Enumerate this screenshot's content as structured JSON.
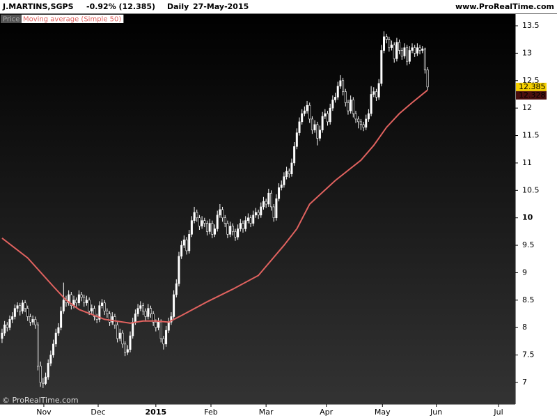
{
  "chart_data": {
    "type": "candlestick",
    "title": "J.MARTINS,SGPS",
    "change": "-0.92% (12.385)",
    "period": "Daily",
    "date": "27-May-2015",
    "source": "www.ProRealTime.com",
    "copyright": "© ProRealTime.com",
    "price_name": "Price",
    "up_color": "#ffffff",
    "down_color": "#000000",
    "wick_color": "#ffffff",
    "last_price_color": "#f5d000",
    "ylim": [
      6.606,
      13.716
    ],
    "yticks": [
      7,
      7.5,
      8,
      8.5,
      9,
      9.5,
      10,
      10.5,
      11,
      11.5,
      12,
      12.5,
      13,
      13.5
    ],
    "major_ytick": 10,
    "xlim": [
      -0.8,
      200.2
    ],
    "xticks": [
      {
        "value": 16.3,
        "label": "Nov"
      },
      {
        "value": 37.5,
        "label": "Dec"
      },
      {
        "value": 60,
        "label": "2015"
      },
      {
        "value": 81.5,
        "label": "Feb"
      },
      {
        "value": 103,
        "label": "Mar"
      },
      {
        "value": 126.5,
        "label": "Apr"
      },
      {
        "value": 148.4,
        "label": "May"
      },
      {
        "value": 169.4,
        "label": "Jun"
      },
      {
        "value": 193.7,
        "label": "Jul"
      }
    ],
    "major_xtick": "2015",
    "moving_average": {
      "name": "Moving average (Simple 50)",
      "color": "#e0625f",
      "x": [
        0,
        10,
        20,
        25,
        30,
        40,
        50,
        55,
        60,
        65,
        70,
        80,
        90,
        100,
        110,
        115,
        120,
        130,
        140,
        145,
        150,
        155,
        160,
        166
      ],
      "values": [
        9.63,
        9.27,
        8.75,
        8.5,
        8.33,
        8.15,
        8.08,
        8.12,
        8.12,
        8.1,
        8.22,
        8.47,
        8.7,
        8.95,
        9.5,
        9.8,
        10.25,
        10.68,
        11.05,
        11.32,
        11.65,
        11.9,
        12.1,
        12.328
      ]
    },
    "ohlc": [
      [
        7.8,
        7.98,
        7.72,
        7.9
      ],
      [
        7.9,
        8.12,
        7.85,
        8.05
      ],
      [
        8.05,
        8.1,
        7.93,
        8.0
      ],
      [
        8.0,
        8.22,
        7.95,
        8.15
      ],
      [
        8.15,
        8.28,
        8.08,
        8.2
      ],
      [
        8.2,
        8.42,
        8.15,
        8.35
      ],
      [
        8.35,
        8.46,
        8.28,
        8.4
      ],
      [
        8.4,
        8.45,
        8.22,
        8.3
      ],
      [
        8.3,
        8.5,
        8.25,
        8.45
      ],
      [
        8.45,
        8.5,
        8.28,
        8.35
      ],
      [
        8.35,
        8.4,
        8.12,
        8.2
      ],
      [
        8.2,
        8.25,
        8.03,
        8.1
      ],
      [
        8.1,
        8.22,
        8.05,
        8.15
      ],
      [
        8.15,
        8.2,
        7.98,
        8.05
      ],
      [
        8.05,
        8.1,
        7.22,
        7.3
      ],
      [
        7.3,
        7.38,
        6.92,
        7.0
      ],
      [
        7.0,
        7.08,
        6.9,
        6.98
      ],
      [
        6.98,
        7.18,
        6.95,
        7.1
      ],
      [
        7.1,
        7.42,
        7.05,
        7.35
      ],
      [
        7.35,
        7.58,
        7.3,
        7.5
      ],
      [
        7.5,
        7.78,
        7.45,
        7.7
      ],
      [
        7.7,
        7.98,
        7.65,
        7.9
      ],
      [
        7.9,
        8.08,
        7.85,
        8.0
      ],
      [
        8.0,
        8.38,
        7.95,
        8.3
      ],
      [
        8.3,
        8.82,
        8.25,
        8.5
      ],
      [
        8.5,
        8.58,
        8.38,
        8.45
      ],
      [
        8.45,
        8.68,
        8.4,
        8.6
      ],
      [
        8.6,
        8.65,
        8.33,
        8.4
      ],
      [
        8.4,
        8.58,
        8.35,
        8.5
      ],
      [
        8.5,
        8.55,
        8.38,
        8.45
      ],
      [
        8.45,
        8.68,
        8.4,
        8.6
      ],
      [
        8.6,
        8.65,
        8.48,
        8.55
      ],
      [
        8.55,
        8.6,
        8.38,
        8.45
      ],
      [
        8.45,
        8.58,
        8.4,
        8.5
      ],
      [
        8.5,
        8.55,
        8.23,
        8.3
      ],
      [
        8.3,
        8.42,
        8.25,
        8.35
      ],
      [
        8.35,
        8.4,
        8.13,
        8.2
      ],
      [
        8.2,
        8.25,
        8.08,
        8.15
      ],
      [
        8.15,
        8.48,
        8.1,
        8.4
      ],
      [
        8.4,
        8.52,
        8.35,
        8.45
      ],
      [
        8.45,
        8.5,
        8.23,
        8.3
      ],
      [
        8.3,
        8.35,
        8.18,
        8.25
      ],
      [
        8.25,
        8.3,
        8.03,
        8.1
      ],
      [
        8.1,
        8.28,
        8.05,
        8.2
      ],
      [
        8.2,
        8.25,
        7.98,
        8.05
      ],
      [
        8.05,
        8.1,
        7.73,
        7.8
      ],
      [
        7.8,
        7.98,
        7.75,
        7.9
      ],
      [
        7.9,
        7.95,
        7.63,
        7.7
      ],
      [
        7.7,
        7.75,
        7.48,
        7.55
      ],
      [
        7.55,
        7.68,
        7.5,
        7.6
      ],
      [
        7.6,
        7.93,
        7.55,
        7.85
      ],
      [
        7.85,
        8.18,
        7.8,
        8.1
      ],
      [
        8.1,
        8.33,
        8.05,
        8.25
      ],
      [
        8.25,
        8.43,
        8.2,
        8.35
      ],
      [
        8.35,
        8.48,
        8.3,
        8.4
      ],
      [
        8.4,
        8.45,
        8.23,
        8.3
      ],
      [
        8.3,
        8.35,
        8.13,
        8.2
      ],
      [
        8.2,
        8.43,
        8.15,
        8.35
      ],
      [
        8.35,
        8.4,
        8.18,
        8.25
      ],
      [
        8.25,
        8.3,
        8.03,
        8.1
      ],
      [
        8.1,
        8.15,
        7.93,
        8.0
      ],
      [
        8.0,
        8.18,
        7.95,
        8.1
      ],
      [
        8.1,
        8.15,
        7.73,
        7.8
      ],
      [
        7.8,
        7.85,
        7.6,
        7.7
      ],
      [
        7.7,
        8.03,
        7.65,
        7.95
      ],
      [
        7.95,
        8.18,
        7.9,
        8.1
      ],
      [
        8.1,
        8.28,
        8.05,
        8.2
      ],
      [
        8.2,
        8.68,
        8.15,
        8.6
      ],
      [
        8.6,
        8.88,
        8.55,
        8.8
      ],
      [
        8.8,
        9.38,
        8.75,
        9.3
      ],
      [
        9.3,
        9.58,
        9.25,
        9.5
      ],
      [
        9.5,
        9.68,
        9.45,
        9.6
      ],
      [
        9.6,
        9.65,
        9.33,
        9.4
      ],
      [
        9.4,
        9.78,
        9.35,
        9.7
      ],
      [
        9.7,
        10.03,
        9.65,
        9.95
      ],
      [
        9.95,
        10.2,
        9.9,
        10.1
      ],
      [
        10.1,
        10.15,
        9.93,
        10.0
      ],
      [
        10.0,
        10.05,
        9.78,
        9.85
      ],
      [
        9.85,
        10.03,
        9.8,
        9.95
      ],
      [
        9.95,
        10.0,
        9.83,
        9.9
      ],
      [
        9.9,
        9.95,
        9.68,
        9.75
      ],
      [
        9.75,
        9.98,
        9.7,
        9.9
      ],
      [
        9.9,
        9.95,
        9.63,
        9.7
      ],
      [
        9.7,
        9.88,
        9.65,
        9.8
      ],
      [
        9.8,
        10.13,
        9.75,
        10.05
      ],
      [
        10.05,
        10.25,
        10.0,
        10.15
      ],
      [
        10.15,
        10.2,
        9.93,
        10.0
      ],
      [
        10.0,
        10.05,
        9.83,
        9.9
      ],
      [
        9.9,
        9.95,
        9.63,
        9.7
      ],
      [
        9.7,
        9.93,
        9.65,
        9.85
      ],
      [
        9.85,
        9.9,
        9.68,
        9.75
      ],
      [
        9.75,
        9.8,
        9.58,
        9.65
      ],
      [
        9.65,
        9.88,
        9.6,
        9.8
      ],
      [
        9.8,
        9.98,
        9.75,
        9.9
      ],
      [
        9.9,
        9.95,
        9.73,
        9.8
      ],
      [
        9.8,
        10.03,
        9.75,
        9.95
      ],
      [
        9.95,
        10.08,
        9.9,
        10.0
      ],
      [
        10.0,
        10.05,
        9.83,
        9.9
      ],
      [
        9.9,
        10.13,
        9.85,
        10.05
      ],
      [
        10.05,
        10.18,
        10.0,
        10.1
      ],
      [
        10.1,
        10.15,
        9.98,
        10.05
      ],
      [
        10.05,
        10.28,
        10.0,
        10.2
      ],
      [
        10.2,
        10.38,
        10.15,
        10.3
      ],
      [
        10.3,
        10.35,
        10.18,
        10.25
      ],
      [
        10.25,
        10.53,
        10.2,
        10.45
      ],
      [
        10.45,
        10.5,
        10.13,
        10.2
      ],
      [
        10.2,
        10.25,
        9.93,
        10.0
      ],
      [
        10.0,
        10.43,
        9.95,
        10.35
      ],
      [
        10.35,
        10.63,
        10.3,
        10.55
      ],
      [
        10.55,
        10.68,
        10.5,
        10.6
      ],
      [
        10.6,
        10.83,
        10.55,
        10.75
      ],
      [
        10.75,
        10.93,
        10.7,
        10.85
      ],
      [
        10.85,
        10.9,
        10.73,
        10.8
      ],
      [
        10.8,
        11.08,
        10.75,
        11.0
      ],
      [
        11.0,
        11.38,
        10.95,
        11.3
      ],
      [
        11.3,
        11.63,
        11.25,
        11.55
      ],
      [
        11.55,
        11.83,
        11.5,
        11.75
      ],
      [
        11.75,
        11.98,
        11.7,
        11.9
      ],
      [
        11.9,
        12.03,
        11.85,
        11.95
      ],
      [
        11.95,
        12.13,
        11.9,
        12.05
      ],
      [
        12.05,
        12.1,
        11.73,
        11.8
      ],
      [
        11.8,
        11.85,
        11.53,
        11.6
      ],
      [
        11.6,
        11.78,
        11.55,
        11.7
      ],
      [
        11.7,
        11.75,
        11.32,
        11.45
      ],
      [
        11.45,
        11.68,
        11.4,
        11.6
      ],
      [
        11.6,
        11.93,
        11.55,
        11.85
      ],
      [
        11.85,
        11.98,
        11.8,
        11.9
      ],
      [
        11.9,
        11.95,
        11.68,
        11.75
      ],
      [
        11.75,
        12.08,
        11.7,
        12.0
      ],
      [
        12.0,
        12.23,
        11.95,
        12.15
      ],
      [
        12.15,
        12.28,
        12.1,
        12.2
      ],
      [
        12.2,
        12.48,
        12.15,
        12.4
      ],
      [
        12.4,
        12.6,
        12.35,
        12.5
      ],
      [
        12.5,
        12.55,
        12.23,
        12.3
      ],
      [
        12.3,
        12.35,
        12.03,
        12.1
      ],
      [
        12.1,
        12.15,
        11.88,
        11.95
      ],
      [
        11.95,
        12.23,
        11.9,
        12.15
      ],
      [
        12.15,
        12.2,
        11.83,
        11.9
      ],
      [
        11.9,
        11.95,
        11.73,
        11.8
      ],
      [
        11.8,
        11.85,
        11.63,
        11.75
      ],
      [
        11.75,
        11.8,
        11.6,
        11.7
      ],
      [
        11.7,
        11.75,
        11.58,
        11.65
      ],
      [
        11.65,
        11.88,
        11.6,
        11.8
      ],
      [
        11.8,
        11.98,
        11.75,
        11.9
      ],
      [
        11.9,
        12.4,
        11.85,
        12.25
      ],
      [
        12.25,
        12.38,
        12.2,
        12.3
      ],
      [
        12.3,
        12.35,
        12.13,
        12.2
      ],
      [
        12.2,
        12.53,
        12.15,
        12.45
      ],
      [
        12.45,
        13.15,
        12.4,
        13.05
      ],
      [
        13.05,
        13.4,
        13.0,
        13.3
      ],
      [
        13.3,
        13.35,
        13.18,
        13.25
      ],
      [
        13.25,
        13.3,
        13.03,
        13.1
      ],
      [
        13.1,
        13.23,
        13.05,
        13.15
      ],
      [
        13.15,
        13.2,
        12.83,
        12.9
      ],
      [
        12.9,
        13.28,
        12.85,
        13.2
      ],
      [
        13.2,
        13.25,
        12.98,
        13.05
      ],
      [
        13.05,
        13.1,
        12.88,
        12.95
      ],
      [
        12.95,
        13.18,
        12.9,
        13.1
      ],
      [
        13.1,
        13.15,
        12.78,
        12.85
      ],
      [
        12.85,
        13.13,
        12.8,
        13.05
      ],
      [
        13.05,
        13.18,
        13.0,
        13.1
      ],
      [
        13.1,
        13.15,
        12.93,
        13.0
      ],
      [
        13.0,
        13.18,
        12.95,
        13.1
      ],
      [
        13.1,
        13.15,
        12.98,
        13.05
      ],
      [
        13.05,
        13.13,
        13.0,
        13.08
      ],
      [
        13.08,
        13.1,
        12.63,
        12.7
      ],
      [
        12.7,
        12.75,
        12.33,
        12.385
      ]
    ]
  }
}
